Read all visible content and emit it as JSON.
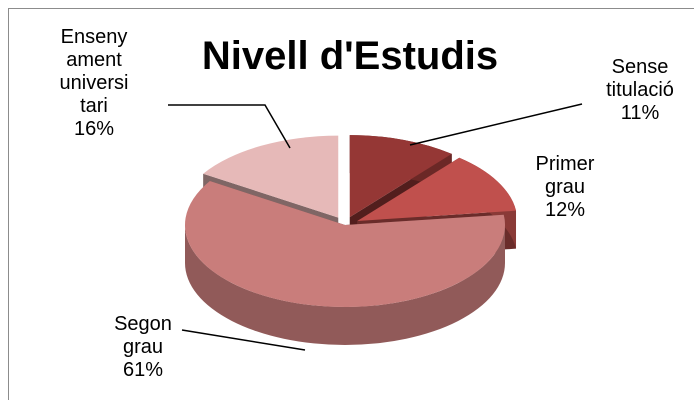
{
  "chart_data": {
    "type": "pie3d",
    "title": "Nivell d'Estudis",
    "categories": [
      "Sense titulació",
      "Primer grau",
      "Segon grau",
      "Ensenyament universitari"
    ],
    "values": [
      11,
      12,
      61,
      16
    ],
    "value_labels": [
      "11%",
      "12%",
      "61%",
      "16%"
    ],
    "colors": [
      "#953735",
      "#c0504d",
      "#c97d7b",
      "#e6b9b8"
    ]
  }
}
